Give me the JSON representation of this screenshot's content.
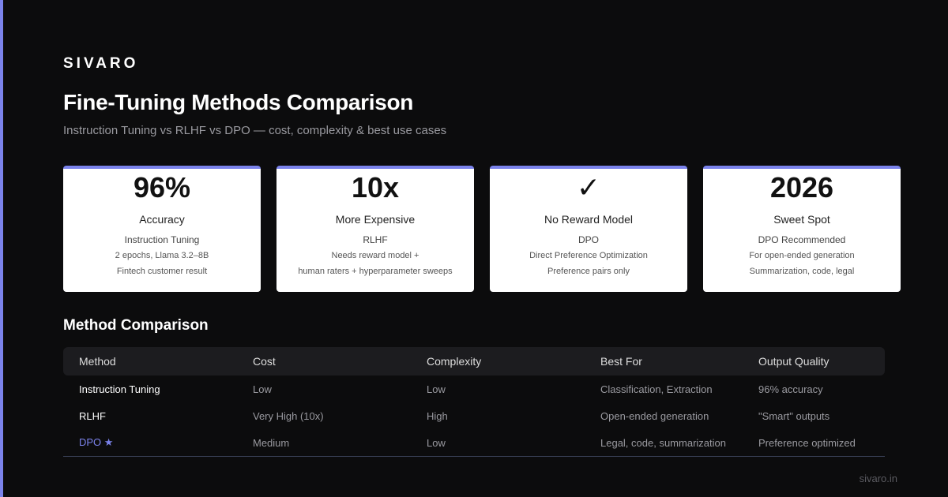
{
  "brand": "SIVARO",
  "title": "Fine-Tuning Methods Comparison",
  "subtitle": "Instruction Tuning vs RLHF vs DPO — cost, complexity & best use cases",
  "accent_color": "#7b83eb",
  "cards": [
    {
      "value": "96%",
      "label": "Accuracy",
      "sub": "Instruction Tuning",
      "details": [
        "2 epochs, Llama 3.2–8B",
        "Fintech customer result"
      ]
    },
    {
      "value": "10x",
      "label": "More Expensive",
      "sub": "RLHF",
      "details": [
        "Needs reward model +",
        "human raters + hyperparameter sweeps"
      ]
    },
    {
      "value": "✓",
      "label": "No Reward Model",
      "sub": "DPO",
      "details": [
        "Direct Preference Optimization",
        "Preference pairs only"
      ]
    },
    {
      "value": "2026",
      "label": "Sweet Spot",
      "sub": "DPO Recommended",
      "details": [
        "For open-ended generation",
        "Summarization, code, legal"
      ]
    }
  ],
  "table": {
    "title": "Method Comparison",
    "headers": [
      "Method",
      "Cost",
      "Complexity",
      "Best For",
      "Output Quality"
    ],
    "rows": [
      [
        "Instruction Tuning",
        "Low",
        "Low",
        "Classification, Extraction",
        "96% accuracy"
      ],
      [
        "RLHF",
        "Very High (10x)",
        "High",
        "Open-ended generation",
        "\"Smart\" outputs"
      ],
      [
        "DPO ★",
        "Medium",
        "Low",
        "Legal, code, summarization",
        "Preference optimized"
      ]
    ]
  },
  "footer": "sivaro.in"
}
